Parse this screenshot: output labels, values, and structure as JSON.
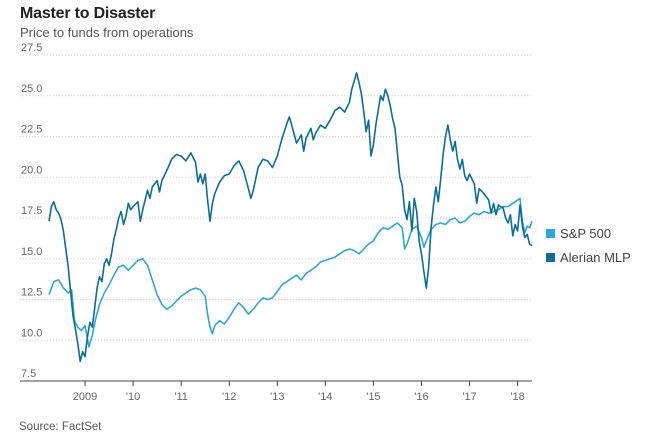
{
  "title": "Master to Disaster",
  "subtitle": "Price to funds from operations",
  "source": "Source: FactSet",
  "colors": {
    "sp500": "#2ea6d8",
    "alerian": "#0a6e97",
    "grid": "#cfcfcf",
    "axis": "#444444",
    "tick_text": "#666666"
  },
  "chart_data": {
    "type": "line",
    "title": "Master to Disaster",
    "subtitle": "Price to funds from operations",
    "ylim": [
      7.5,
      27.5
    ],
    "yticks": [
      "7.5",
      "10.0",
      "12.5",
      "15.0",
      "17.5",
      "20.0",
      "22.5",
      "25.0",
      "27.5"
    ],
    "xlim": [
      2008.25,
      2018.3
    ],
    "xticks": [
      {
        "x": 2009.0,
        "label": "2009"
      },
      {
        "x": 2010.0,
        "label": "'10"
      },
      {
        "x": 2011.0,
        "label": "'11"
      },
      {
        "x": 2012.0,
        "label": "'12"
      },
      {
        "x": 2013.0,
        "label": "'13"
      },
      {
        "x": 2014.0,
        "label": "'14"
      },
      {
        "x": 2015.0,
        "label": "'15"
      },
      {
        "x": 2016.0,
        "label": "'16"
      },
      {
        "x": 2017.0,
        "label": "'17"
      },
      {
        "x": 2018.0,
        "label": "'18"
      }
    ],
    "grid": true,
    "legend_position": "right",
    "series": [
      {
        "name": "S&P 500",
        "color": "#2ea6d8",
        "points": [
          [
            2008.25,
            12.8
          ],
          [
            2008.35,
            13.6
          ],
          [
            2008.45,
            13.7
          ],
          [
            2008.55,
            13.2
          ],
          [
            2008.65,
            12.9
          ],
          [
            2008.72,
            13.1
          ],
          [
            2008.78,
            11.2
          ],
          [
            2008.85,
            10.8
          ],
          [
            2008.92,
            10.6
          ],
          [
            2009.0,
            10.9
          ],
          [
            2009.08,
            9.6
          ],
          [
            2009.15,
            10.3
          ],
          [
            2009.22,
            11.3
          ],
          [
            2009.3,
            12.2
          ],
          [
            2009.4,
            12.9
          ],
          [
            2009.5,
            13.4
          ],
          [
            2009.6,
            14.0
          ],
          [
            2009.7,
            14.5
          ],
          [
            2009.8,
            14.6
          ],
          [
            2009.9,
            14.3
          ],
          [
            2010.0,
            14.6
          ],
          [
            2010.1,
            14.9
          ],
          [
            2010.2,
            15.0
          ],
          [
            2010.3,
            14.6
          ],
          [
            2010.4,
            13.7
          ],
          [
            2010.5,
            12.8
          ],
          [
            2010.6,
            12.2
          ],
          [
            2010.7,
            11.9
          ],
          [
            2010.8,
            12.1
          ],
          [
            2010.9,
            12.4
          ],
          [
            2011.0,
            12.7
          ],
          [
            2011.1,
            12.9
          ],
          [
            2011.2,
            13.1
          ],
          [
            2011.3,
            13.2
          ],
          [
            2011.4,
            13.1
          ],
          [
            2011.5,
            12.7
          ],
          [
            2011.55,
            11.6
          ],
          [
            2011.6,
            10.8
          ],
          [
            2011.65,
            10.4
          ],
          [
            2011.7,
            10.9
          ],
          [
            2011.8,
            11.2
          ],
          [
            2011.9,
            11.0
          ],
          [
            2012.0,
            11.4
          ],
          [
            2012.1,
            11.9
          ],
          [
            2012.2,
            12.3
          ],
          [
            2012.3,
            12.0
          ],
          [
            2012.4,
            11.6
          ],
          [
            2012.5,
            11.9
          ],
          [
            2012.6,
            12.3
          ],
          [
            2012.7,
            12.6
          ],
          [
            2012.8,
            12.5
          ],
          [
            2012.9,
            12.6
          ],
          [
            2013.0,
            13.0
          ],
          [
            2013.1,
            13.4
          ],
          [
            2013.2,
            13.6
          ],
          [
            2013.3,
            13.8
          ],
          [
            2013.4,
            14.0
          ],
          [
            2013.5,
            13.7
          ],
          [
            2013.6,
            14.1
          ],
          [
            2013.7,
            14.3
          ],
          [
            2013.8,
            14.5
          ],
          [
            2013.9,
            14.8
          ],
          [
            2014.0,
            14.9
          ],
          [
            2014.1,
            15.0
          ],
          [
            2014.2,
            15.1
          ],
          [
            2014.3,
            15.3
          ],
          [
            2014.4,
            15.5
          ],
          [
            2014.5,
            15.6
          ],
          [
            2014.6,
            15.5
          ],
          [
            2014.7,
            15.3
          ],
          [
            2014.8,
            15.6
          ],
          [
            2014.9,
            15.9
          ],
          [
            2015.0,
            16.1
          ],
          [
            2015.1,
            16.6
          ],
          [
            2015.2,
            16.9
          ],
          [
            2015.3,
            16.8
          ],
          [
            2015.4,
            17.0
          ],
          [
            2015.5,
            17.2
          ],
          [
            2015.6,
            16.9
          ],
          [
            2015.65,
            15.6
          ],
          [
            2015.7,
            15.9
          ],
          [
            2015.8,
            16.8
          ],
          [
            2015.9,
            17.0
          ],
          [
            2016.0,
            16.3
          ],
          [
            2016.05,
            15.7
          ],
          [
            2016.1,
            16.1
          ],
          [
            2016.2,
            16.8
          ],
          [
            2016.3,
            17.1
          ],
          [
            2016.4,
            17.2
          ],
          [
            2016.5,
            17.1
          ],
          [
            2016.6,
            17.4
          ],
          [
            2016.7,
            17.5
          ],
          [
            2016.8,
            17.2
          ],
          [
            2016.9,
            17.3
          ],
          [
            2017.0,
            17.6
          ],
          [
            2017.1,
            17.8
          ],
          [
            2017.2,
            17.7
          ],
          [
            2017.3,
            17.9
          ],
          [
            2017.4,
            17.8
          ],
          [
            2017.5,
            17.9
          ],
          [
            2017.6,
            18.0
          ],
          [
            2017.7,
            18.2
          ],
          [
            2017.8,
            18.2
          ],
          [
            2017.9,
            18.4
          ],
          [
            2018.0,
            18.6
          ],
          [
            2018.05,
            18.7
          ],
          [
            2018.1,
            17.3
          ],
          [
            2018.15,
            16.6
          ],
          [
            2018.2,
            17.0
          ],
          [
            2018.25,
            16.9
          ],
          [
            2018.3,
            17.3
          ]
        ]
      },
      {
        "name": "Alerian MLP",
        "color": "#0a6e97",
        "points": [
          [
            2008.25,
            17.3
          ],
          [
            2008.3,
            18.2
          ],
          [
            2008.35,
            18.5
          ],
          [
            2008.4,
            18.0
          ],
          [
            2008.45,
            17.8
          ],
          [
            2008.5,
            17.4
          ],
          [
            2008.55,
            16.7
          ],
          [
            2008.6,
            15.6
          ],
          [
            2008.65,
            14.5
          ],
          [
            2008.7,
            13.0
          ],
          [
            2008.75,
            11.5
          ],
          [
            2008.8,
            10.7
          ],
          [
            2008.85,
            9.8
          ],
          [
            2008.9,
            8.7
          ],
          [
            2008.95,
            9.3
          ],
          [
            2009.0,
            9.0
          ],
          [
            2009.05,
            10.2
          ],
          [
            2009.1,
            11.1
          ],
          [
            2009.15,
            10.8
          ],
          [
            2009.2,
            12.0
          ],
          [
            2009.25,
            13.2
          ],
          [
            2009.3,
            13.9
          ],
          [
            2009.35,
            13.6
          ],
          [
            2009.4,
            14.7
          ],
          [
            2009.45,
            15.0
          ],
          [
            2009.5,
            14.6
          ],
          [
            2009.55,
            15.3
          ],
          [
            2009.6,
            16.2
          ],
          [
            2009.65,
            16.8
          ],
          [
            2009.7,
            17.5
          ],
          [
            2009.75,
            17.9
          ],
          [
            2009.8,
            17.1
          ],
          [
            2009.85,
            17.6
          ],
          [
            2009.9,
            18.4
          ],
          [
            2009.95,
            18.0
          ],
          [
            2010.0,
            18.2
          ],
          [
            2010.1,
            18.5
          ],
          [
            2010.15,
            17.3
          ],
          [
            2010.2,
            18.0
          ],
          [
            2010.3,
            19.2
          ],
          [
            2010.35,
            18.7
          ],
          [
            2010.4,
            19.4
          ],
          [
            2010.5,
            19.8
          ],
          [
            2010.55,
            19.1
          ],
          [
            2010.6,
            19.8
          ],
          [
            2010.7,
            20.4
          ],
          [
            2010.8,
            21.1
          ],
          [
            2010.9,
            21.4
          ],
          [
            2011.0,
            21.3
          ],
          [
            2011.1,
            21.0
          ],
          [
            2011.2,
            21.5
          ],
          [
            2011.3,
            20.9
          ],
          [
            2011.35,
            19.7
          ],
          [
            2011.4,
            20.2
          ],
          [
            2011.45,
            19.6
          ],
          [
            2011.5,
            20.2
          ],
          [
            2011.55,
            18.6
          ],
          [
            2011.6,
            17.3
          ],
          [
            2011.65,
            18.4
          ],
          [
            2011.7,
            19.0
          ],
          [
            2011.8,
            19.7
          ],
          [
            2011.9,
            20.1
          ],
          [
            2012.0,
            20.2
          ],
          [
            2012.1,
            20.7
          ],
          [
            2012.2,
            21.0
          ],
          [
            2012.3,
            20.4
          ],
          [
            2012.4,
            19.3
          ],
          [
            2012.45,
            18.7
          ],
          [
            2012.5,
            19.2
          ],
          [
            2012.6,
            20.6
          ],
          [
            2012.7,
            21.1
          ],
          [
            2012.8,
            21.0
          ],
          [
            2012.9,
            20.6
          ],
          [
            2013.0,
            21.3
          ],
          [
            2013.1,
            22.4
          ],
          [
            2013.2,
            23.3
          ],
          [
            2013.25,
            23.7
          ],
          [
            2013.3,
            23.2
          ],
          [
            2013.4,
            22.1
          ],
          [
            2013.5,
            22.6
          ],
          [
            2013.55,
            21.6
          ],
          [
            2013.6,
            22.4
          ],
          [
            2013.7,
            23.0
          ],
          [
            2013.75,
            22.3
          ],
          [
            2013.8,
            22.7
          ],
          [
            2013.9,
            23.2
          ],
          [
            2014.0,
            23.0
          ],
          [
            2014.1,
            23.5
          ],
          [
            2014.2,
            24.1
          ],
          [
            2014.3,
            24.3
          ],
          [
            2014.4,
            24.0
          ],
          [
            2014.5,
            24.6
          ],
          [
            2014.55,
            25.4
          ],
          [
            2014.6,
            25.9
          ],
          [
            2014.65,
            26.4
          ],
          [
            2014.7,
            25.8
          ],
          [
            2014.75,
            25.1
          ],
          [
            2014.8,
            24.0
          ],
          [
            2014.85,
            22.8
          ],
          [
            2014.9,
            23.5
          ],
          [
            2014.95,
            21.3
          ],
          [
            2015.0,
            22.0
          ],
          [
            2015.05,
            23.2
          ],
          [
            2015.1,
            24.1
          ],
          [
            2015.15,
            25.0
          ],
          [
            2015.2,
            24.7
          ],
          [
            2015.25,
            25.4
          ],
          [
            2015.3,
            25.0
          ],
          [
            2015.35,
            24.4
          ],
          [
            2015.4,
            23.6
          ],
          [
            2015.45,
            23.0
          ],
          [
            2015.5,
            21.5
          ],
          [
            2015.55,
            20.0
          ],
          [
            2015.6,
            19.5
          ],
          [
            2015.65,
            18.0
          ],
          [
            2015.7,
            17.4
          ],
          [
            2015.75,
            18.5
          ],
          [
            2015.8,
            16.7
          ],
          [
            2015.85,
            18.7
          ],
          [
            2015.9,
            17.9
          ],
          [
            2015.95,
            16.1
          ],
          [
            2016.0,
            15.3
          ],
          [
            2016.05,
            14.2
          ],
          [
            2016.1,
            13.2
          ],
          [
            2016.15,
            14.5
          ],
          [
            2016.2,
            16.9
          ],
          [
            2016.25,
            18.3
          ],
          [
            2016.3,
            19.4
          ],
          [
            2016.35,
            18.5
          ],
          [
            2016.4,
            19.9
          ],
          [
            2016.45,
            21.4
          ],
          [
            2016.5,
            22.5
          ],
          [
            2016.55,
            23.2
          ],
          [
            2016.6,
            22.3
          ],
          [
            2016.65,
            21.6
          ],
          [
            2016.7,
            22.2
          ],
          [
            2016.75,
            21.1
          ],
          [
            2016.8,
            20.5
          ],
          [
            2016.85,
            21.1
          ],
          [
            2016.9,
            20.1
          ],
          [
            2016.95,
            19.8
          ],
          [
            2017.0,
            20.2
          ],
          [
            2017.1,
            19.6
          ],
          [
            2017.15,
            18.4
          ],
          [
            2017.2,
            19.3
          ],
          [
            2017.3,
            19.0
          ],
          [
            2017.4,
            18.6
          ],
          [
            2017.45,
            17.8
          ],
          [
            2017.5,
            18.4
          ],
          [
            2017.55,
            17.7
          ],
          [
            2017.6,
            18.3
          ],
          [
            2017.7,
            18.1
          ],
          [
            2017.75,
            17.5
          ],
          [
            2017.8,
            17.2
          ],
          [
            2017.85,
            17.7
          ],
          [
            2017.9,
            16.4
          ],
          [
            2017.95,
            17.1
          ],
          [
            2018.0,
            16.7
          ],
          [
            2018.05,
            18.3
          ],
          [
            2018.1,
            17.0
          ],
          [
            2018.15,
            16.3
          ],
          [
            2018.2,
            16.5
          ],
          [
            2018.25,
            15.9
          ],
          [
            2018.3,
            15.8
          ]
        ]
      }
    ]
  }
}
